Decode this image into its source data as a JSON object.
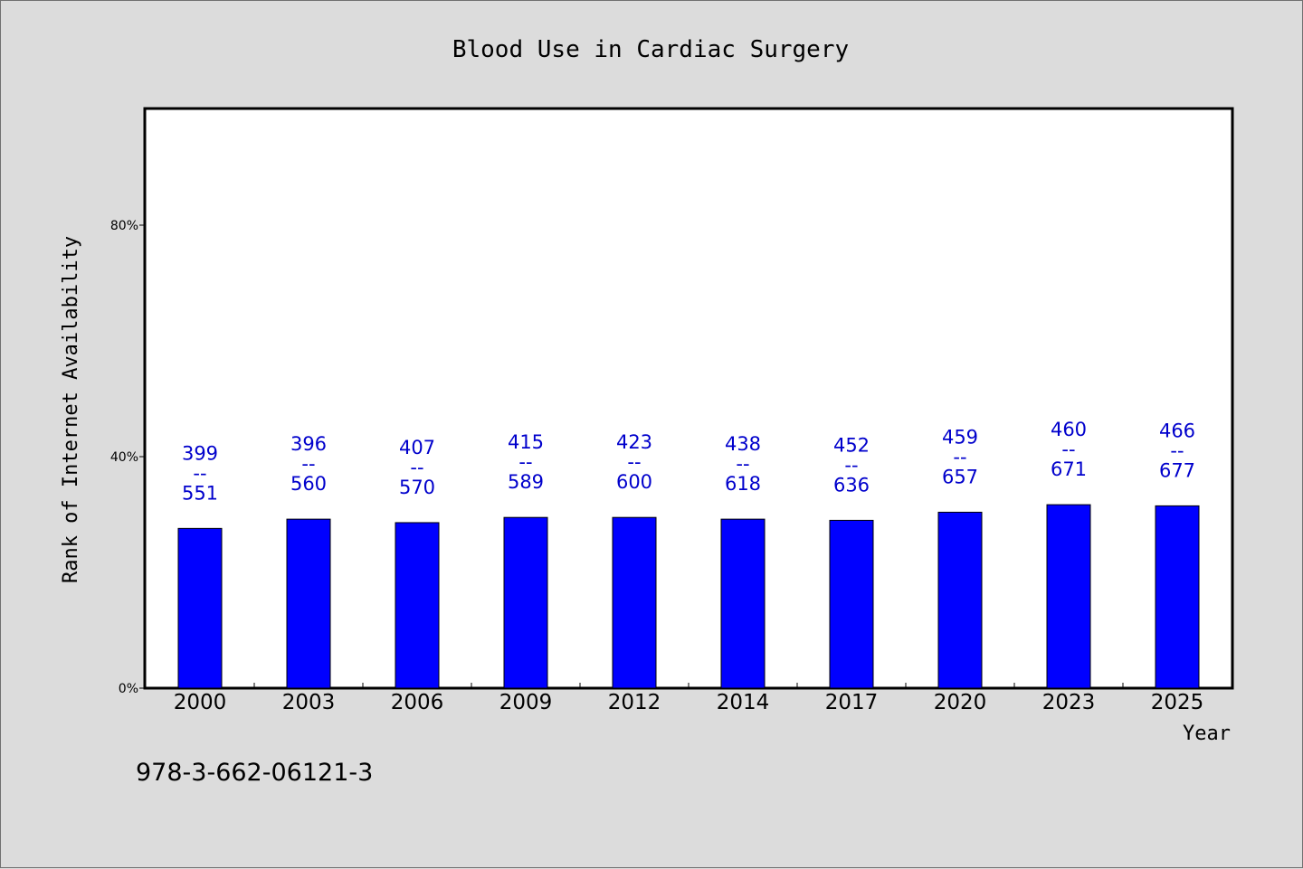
{
  "chart_data": {
    "type": "bar",
    "title": "Blood Use in Cardiac Surgery",
    "xlabel": "Year",
    "ylabel": "Rank of Internet Availability",
    "categories": [
      "2000",
      "2003",
      "2006",
      "2009",
      "2012",
      "2014",
      "2017",
      "2020",
      "2023",
      "2025"
    ],
    "values": [
      27.6,
      29.2,
      28.6,
      29.5,
      29.5,
      29.2,
      29.0,
      30.4,
      31.7,
      31.5
    ],
    "value_unit": "%",
    "bar_labels": {
      "top": [
        "399",
        "396",
        "407",
        "415",
        "423",
        "438",
        "452",
        "459",
        "460",
        "466"
      ],
      "separator": "--",
      "bottom": [
        "551",
        "560",
        "570",
        "589",
        "600",
        "618",
        "636",
        "657",
        "671",
        "677"
      ]
    },
    "ylim": [
      0,
      100
    ],
    "yticks": [
      0,
      40,
      80
    ],
    "ytick_labels": [
      "0%",
      "40%",
      "80%"
    ],
    "grid": false,
    "colors": {
      "bar": "#0000ff",
      "label": "#0000cc",
      "plot_bg": "#ffffff",
      "page_bg": "#dcdcdc"
    }
  },
  "footnote": "978-3-662-06121-3"
}
